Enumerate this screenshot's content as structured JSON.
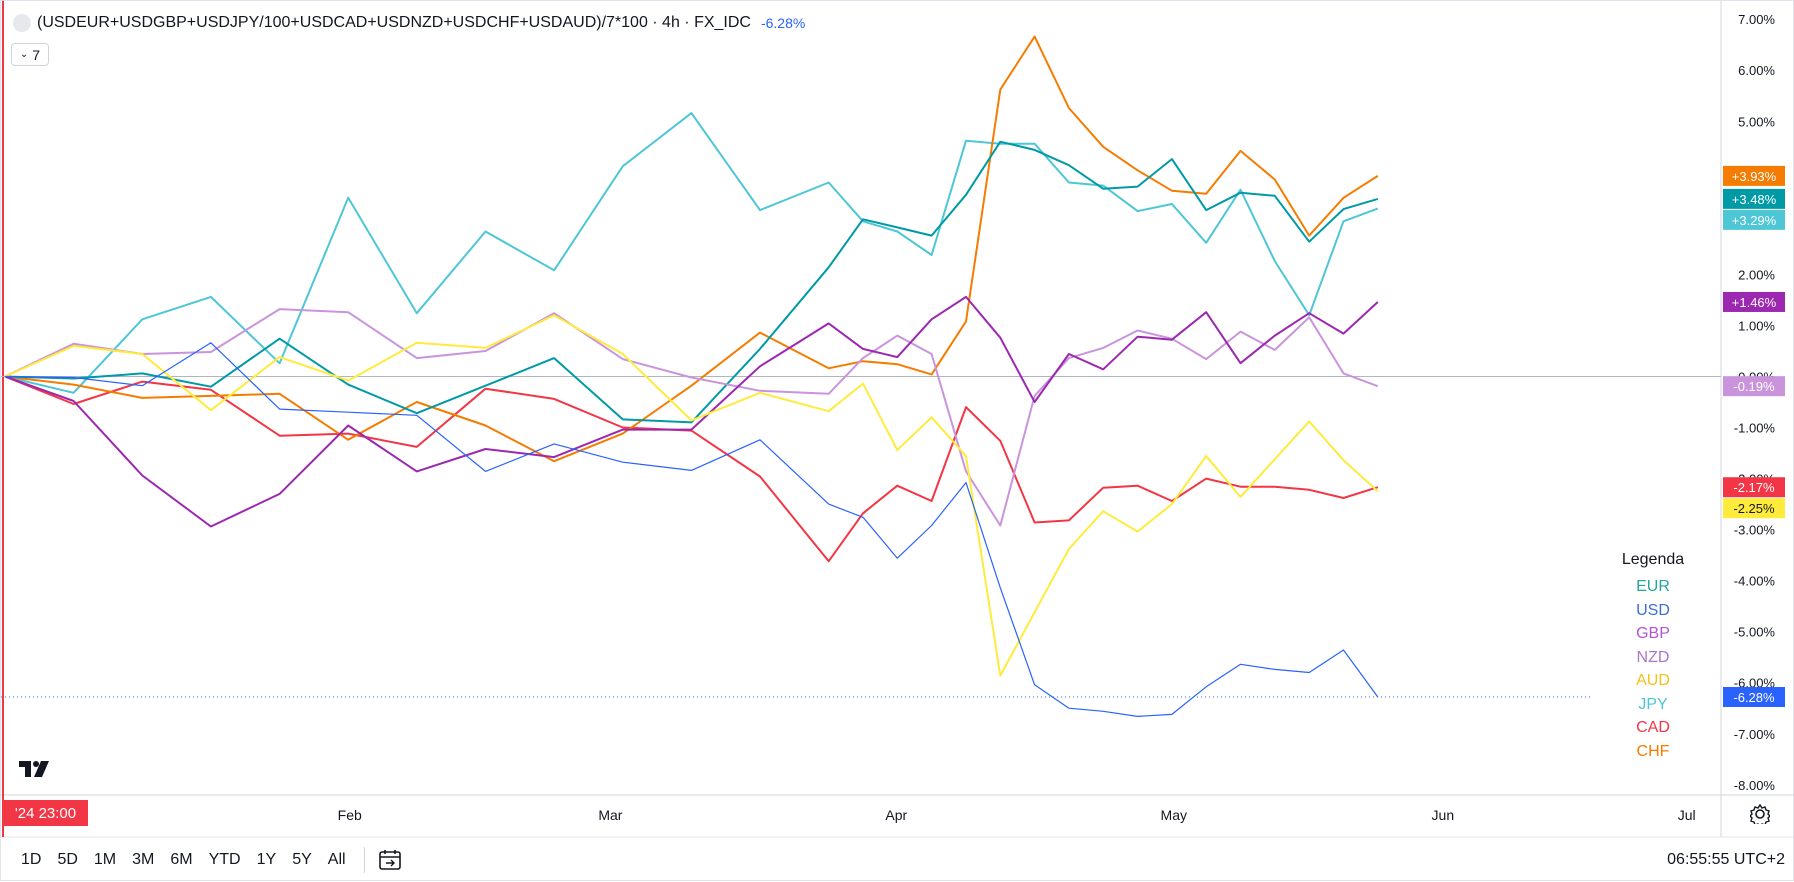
{
  "header": {
    "title": "(USDEUR+USDGBP+USDJPY/100+USDCAD+USDNZD+USDCHF+USDAUD)/7*100 · 4h · FX_IDC",
    "change": "-6.28%",
    "series_toggle": "7"
  },
  "legend": {
    "title": "Legenda",
    "items": [
      {
        "label": "EUR",
        "color": "#26a69a"
      },
      {
        "label": "USD",
        "color": "#3a6fd8"
      },
      {
        "label": "GBP",
        "color": "#b455d3"
      },
      {
        "label": "NZD",
        "color": "#a779c9"
      },
      {
        "label": "AUD",
        "color": "#f5c11e"
      },
      {
        "label": "JPY",
        "color": "#4dc6d6"
      },
      {
        "label": "CAD",
        "color": "#f23645"
      },
      {
        "label": "CHF",
        "color": "#f57c00"
      }
    ]
  },
  "time_axis": {
    "start_badge": "'24  23:00",
    "labels": [
      "Feb",
      "Mar",
      "Apr",
      "May",
      "Jun",
      "Jul"
    ]
  },
  "bottom_bar": {
    "ranges": [
      "1D",
      "5D",
      "1M",
      "3M",
      "6M",
      "YTD",
      "1Y",
      "5Y",
      "All"
    ],
    "clock": "06:55:55 UTC+2"
  },
  "chart_data": {
    "type": "line",
    "x_label_positions": {
      "'24 23:00": 0,
      "Feb": 0.205,
      "Mar": 0.36,
      "Apr": 0.53,
      "May": 0.695,
      "Jun": 0.855,
      "Jul": 1.0
    },
    "x": [
      0,
      0.04,
      0.08,
      0.12,
      0.16,
      0.2,
      0.24,
      0.28,
      0.32,
      0.36,
      0.4,
      0.44,
      0.48,
      0.5,
      0.52,
      0.54,
      0.56,
      0.58,
      0.6,
      0.62,
      0.64,
      0.66,
      0.68,
      0.7,
      0.72,
      0.74,
      0.76,
      0.78,
      0.8
    ],
    "ylim": [
      -8.2,
      7.2
    ],
    "y_ticks": [
      "7.00%",
      "6.00%",
      "5.00%",
      "4.00%",
      "3.00%",
      "2.00%",
      "1.00%",
      "0.00%",
      "-1.00%",
      "-2.00%",
      "-3.00%",
      "-4.00%",
      "-5.00%",
      "-6.00%",
      "-7.00%",
      "-8.00%"
    ],
    "y_tick_values": [
      7,
      6,
      5,
      4,
      3,
      2,
      1,
      0,
      -1,
      -2,
      -3,
      -4,
      -5,
      -6,
      -7,
      -8
    ],
    "series": [
      {
        "name": "USDJPY",
        "color": "#4dc6d6",
        "last_label": "+3.29%",
        "values": [
          0,
          -0.2,
          1.0,
          1.2,
          0.5,
          3.5,
          1.0,
          3.2,
          2.2,
          4.0,
          4.8,
          3.5,
          3.8,
          2.8,
          3.2,
          2.5,
          4.5,
          4.2,
          4.8,
          3.8,
          3.5,
          3.6,
          3.5,
          2.5,
          3.3,
          2.5,
          1.2,
          2.8,
          3.29
        ]
      },
      {
        "name": "USDCAD",
        "color": "#f23645",
        "last_label": "-2.17%",
        "values": [
          0,
          -0.3,
          -0.1,
          -0.5,
          -0.8,
          -1.0,
          -1.5,
          -0.6,
          -0.2,
          -1.0,
          -1.3,
          -1.6,
          -3.5,
          -2.8,
          -2.5,
          -2.2,
          -0.6,
          -1.5,
          -2.5,
          -2.7,
          -2.3,
          -2.5,
          -2.2,
          -2.0,
          -2.4,
          -1.8,
          -2.1,
          -2.5,
          -2.17
        ]
      },
      {
        "name": "USDCHF",
        "color": "#f57c00",
        "last_label": "+3.93%",
        "values": [
          0,
          0.2,
          -0.3,
          -0.5,
          -0.7,
          -1.0,
          -0.5,
          -1.2,
          -1.3,
          -1.0,
          -0.3,
          0.5,
          0.4,
          0.3,
          0.0,
          0.4,
          1.2,
          5.5,
          6.3,
          5.5,
          4.5,
          3.8,
          4.0,
          3.7,
          4.3,
          3.5,
          3.0,
          3.5,
          3.93
        ]
      },
      {
        "name": "USDEUR",
        "color": "#009aa6",
        "last_label": "+3.48%",
        "values": [
          0,
          -0.4,
          0.3,
          -0.2,
          0.5,
          0.2,
          -0.6,
          -0.3,
          0.0,
          -0.6,
          -0.9,
          0.3,
          2.5,
          3.2,
          2.8,
          2.4,
          3.8,
          4.6,
          4.2,
          4.5,
          3.8,
          3.6,
          3.9,
          3.5,
          3.6,
          3.3,
          3.0,
          3.4,
          3.48
        ]
      },
      {
        "name": "USDNZD",
        "color": "#c994dc",
        "last_label": "-0.19%",
        "values": [
          0,
          0.4,
          0.8,
          0.6,
          1.2,
          0.9,
          0.6,
          0.5,
          1.0,
          0.7,
          0.1,
          -0.4,
          -0.7,
          0.6,
          0.8,
          0.2,
          -1.5,
          -2.8,
          -0.5,
          0.0,
          0.8,
          0.9,
          0.5,
          0.7,
          1.0,
          0.4,
          0.8,
          0.3,
          -0.19
        ]
      },
      {
        "name": "USDGBP",
        "color": "#9c27b0",
        "last_label": "+1.46%",
        "values": [
          0,
          -0.6,
          -2.3,
          -2.7,
          -2.3,
          -1.2,
          -1.5,
          -1.3,
          -1.7,
          -1.4,
          -0.8,
          0.2,
          0.8,
          0.9,
          0.5,
          1.0,
          1.2,
          1.0,
          -0.5,
          0.2,
          0.5,
          0.9,
          0.6,
          0.9,
          0.5,
          0.8,
          1.0,
          1.2,
          1.46
        ]
      },
      {
        "name": "USDAUD",
        "color": "#ffeb3b",
        "last_label": "-2.25%",
        "values": [
          0,
          0.6,
          0.2,
          -0.3,
          0.5,
          -0.2,
          0.3,
          0.8,
          1.2,
          0.2,
          -0.5,
          -0.2,
          -0.8,
          -0.5,
          -1.2,
          -0.8,
          -1.8,
          -5.5,
          -4.5,
          -3.5,
          -3.0,
          -2.8,
          -2.5,
          -1.8,
          -2.0,
          -1.5,
          -1.0,
          -2.0,
          -2.25
        ]
      },
      {
        "name": "USD index",
        "color": "#2962ff",
        "last_label": "-6.28%",
        "values": [
          0,
          0.1,
          -0.3,
          0.3,
          -0.4,
          -0.7,
          -1.0,
          -1.5,
          -1.2,
          -1.8,
          -2.2,
          -1.0,
          -2.5,
          -3.0,
          -3.2,
          -2.8,
          -2.2,
          -4.5,
          -5.8,
          -6.5,
          -6.8,
          -6.3,
          -6.5,
          -6.2,
          -6.0,
          -5.5,
          -5.8,
          -5.6,
          -6.28
        ]
      }
    ]
  }
}
